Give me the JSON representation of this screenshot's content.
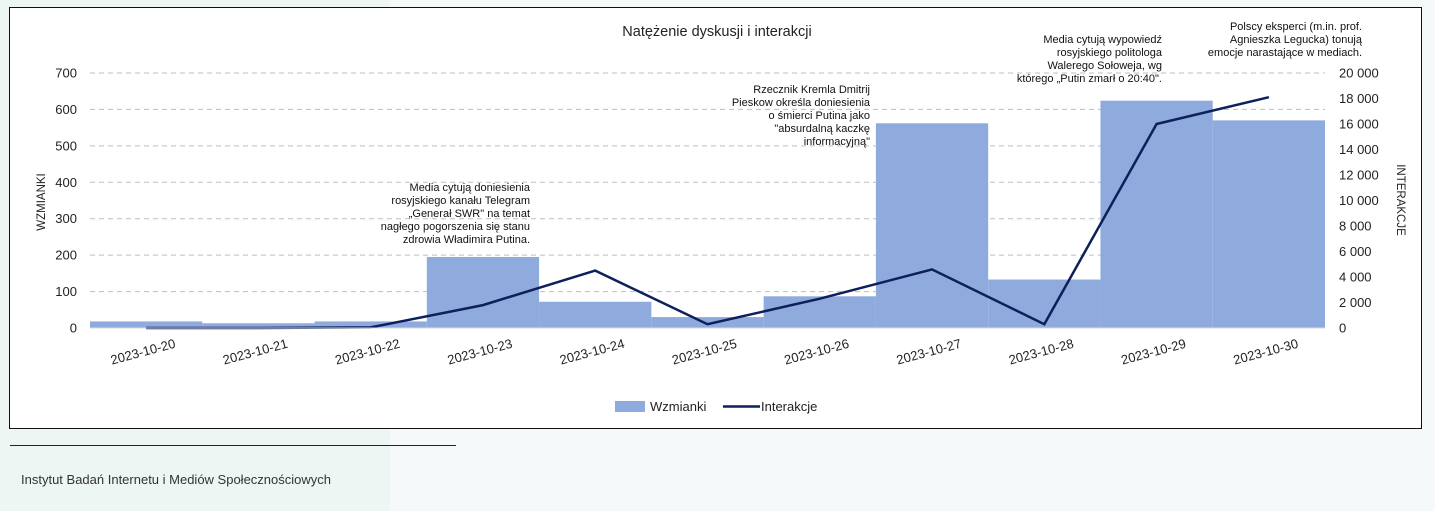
{
  "chart_data": {
    "type": "bar+line",
    "title": "Natężenie dyskusji i interakcji",
    "categories": [
      "2023-10-20",
      "2023-10-21",
      "2023-10-22",
      "2023-10-23",
      "2023-10-24",
      "2023-10-25",
      "2023-10-26",
      "2023-10-27",
      "2023-10-28",
      "2023-10-29",
      "2023-10-30"
    ],
    "series": [
      {
        "name": "Wzmianki",
        "type": "bar",
        "axis": "left",
        "color": "#8faadc",
        "values": [
          18,
          13,
          18,
          195,
          72,
          30,
          87,
          562,
          133,
          624,
          570
        ]
      },
      {
        "name": "Interakcje",
        "type": "line",
        "axis": "right",
        "color": "#0d1f5c",
        "values": [
          0,
          0,
          50,
          1800,
          4500,
          300,
          2300,
          4600,
          300,
          16000,
          18100
        ]
      }
    ],
    "ylabel_left": "WZMIANKI",
    "ylabel_right": "INTERAKCJE",
    "ylim_left": [
      0,
      700
    ],
    "ylim_right": [
      0,
      20000
    ],
    "yticks_left": [
      "0",
      "100",
      "200",
      "300",
      "400",
      "500",
      "600",
      "700"
    ],
    "yticks_right": [
      "0",
      "2 000",
      "4 000",
      "6 000",
      "8 000",
      "10 000",
      "12 000",
      "14 000",
      "16 000",
      "18 000",
      "20 000"
    ],
    "grid": "horizontal dashed",
    "legend_position": "bottom",
    "annotations": [
      {
        "category": "2023-10-23",
        "lines": [
          "Media cytują doniesienia",
          "rosyjskiego kanału Telegram",
          "„Generał SWR\" na temat",
          "nagłego pogorszenia się stanu",
          "zdrowia Władimira Putina."
        ]
      },
      {
        "category": "2023-10-27",
        "lines": [
          "Rzecznik Kremla Dmitrij",
          "Pieskow określa doniesienia",
          "o śmierci Putina jako",
          "\"absurdalną kaczkę",
          "informacyjną\""
        ]
      },
      {
        "category": "2023-10-29",
        "lines": [
          "Media cytują wypowiedź",
          "rosyjskiego politologa",
          "Walerego Sołoweja, wg",
          "którego „Putin zmarł o 20:40\"."
        ]
      },
      {
        "category": "2023-10-30",
        "lines": [
          "Polscy eksperci (m.in. prof.",
          "Agnieszka Legucka) tonują",
          "emocje narastające w mediach."
        ]
      }
    ]
  },
  "footer": {
    "source": "Instytut Badań Internetu i Mediów Społecznościowych"
  }
}
